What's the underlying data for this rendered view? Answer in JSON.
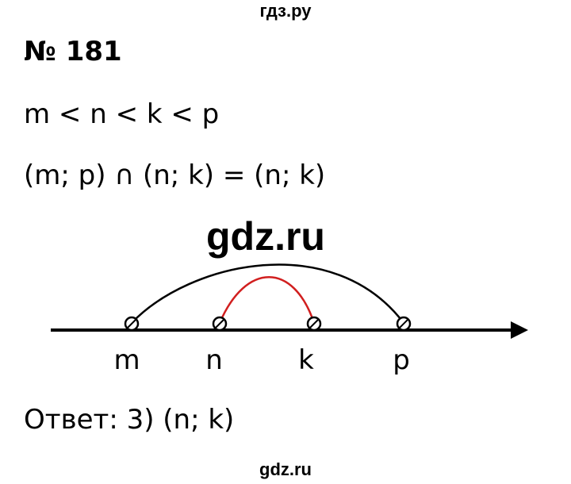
{
  "watermark_top": "гдз.ру",
  "title": "№ 181",
  "inequality": "m < n < k < p",
  "expression": "(m; p) ∩ (n; k) = (n; k)",
  "watermark_mid": "gdz.ru",
  "number_line": {
    "points": [
      {
        "label": "m",
        "order": 1
      },
      {
        "label": "n",
        "order": 2
      },
      {
        "label": "k",
        "order": 3
      },
      {
        "label": "p",
        "order": 4
      }
    ],
    "outer_interval": {
      "from": "m",
      "to": "p",
      "color": "#000000"
    },
    "inner_interval": {
      "from": "n",
      "to": "k",
      "color": "#d11f1f"
    }
  },
  "answer": "Ответ: 3) (n; k)",
  "watermark_bottom": "gdz.ru"
}
